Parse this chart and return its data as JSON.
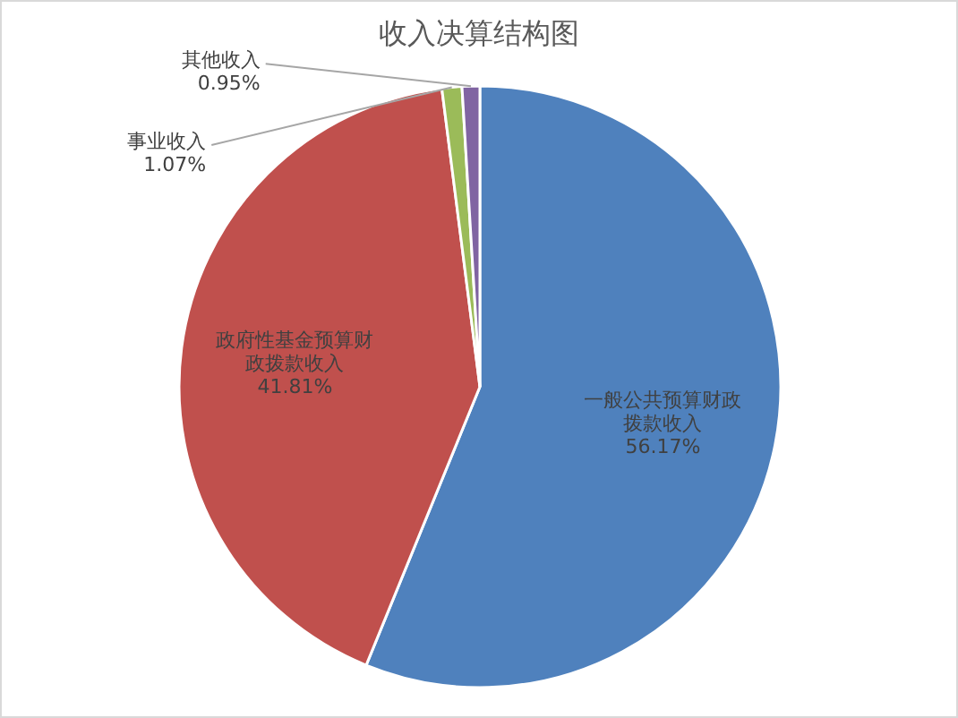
{
  "chart_data": {
    "type": "pie",
    "title": "收入决算结构图",
    "categories": [
      "一般公共预算财政拨款收入",
      "政府性基金预算财政拨款收入",
      "事业收入",
      "其他收入"
    ],
    "values": [
      56.17,
      41.81,
      1.07,
      0.95
    ],
    "value_labels": [
      "56.17%",
      "41.81%",
      "1.07%",
      "0.95%"
    ],
    "colors": [
      "#4f81bd",
      "#c0504d",
      "#9bbb59",
      "#8064a2"
    ]
  }
}
